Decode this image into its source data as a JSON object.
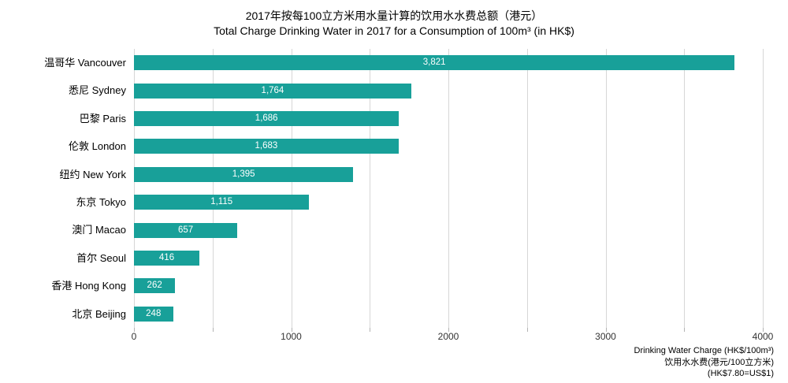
{
  "title": {
    "line1_zh": "2017年按每100立方米用水量计算的饮用水水费总额（港元）",
    "line2_en": "Total Charge Drinking Water in 2017 for a Consumption of 100m³ (in HK$)"
  },
  "chart_data": {
    "type": "bar",
    "orientation": "horizontal",
    "categories": [
      "温哥华 Vancouver",
      "悉尼 Sydney",
      "巴黎 Paris",
      "伦敦 London",
      "纽约 New York",
      "东京 Tokyo",
      "澳门 Macao",
      "首尔 Seoul",
      "香港 Hong Kong",
      "北京 Beijing"
    ],
    "values": [
      3821,
      1764,
      1686,
      1683,
      1395,
      1115,
      657,
      416,
      262,
      248
    ],
    "value_labels": [
      "3,821",
      "1,764",
      "1,686",
      "1,683",
      "1,395",
      "1,115",
      "657",
      "416",
      "262",
      "248"
    ],
    "title": "Total Charge Drinking Water in 2017 for a Consumption of 100m³ (in HK$)",
    "xlabel": "Drinking Water Charge (HK$/100m³)",
    "ylabel": "",
    "xlim": [
      0,
      4000
    ],
    "x_tick_labels": [
      "0",
      "1000",
      "2000",
      "3000",
      "4000"
    ],
    "x_tick_values": [
      0,
      1000,
      2000,
      3000,
      4000
    ],
    "gridline_interval": 500,
    "grid": true,
    "legend_position": "none",
    "bar_color": "#18A099",
    "value_label_color": "#ffffff"
  },
  "footnote": {
    "line1": "Drinking Water Charge (HK$/100m³)",
    "line2": "饮用水水费(港元/100立方米)",
    "line3": "(HK$7.80=US$1)"
  }
}
